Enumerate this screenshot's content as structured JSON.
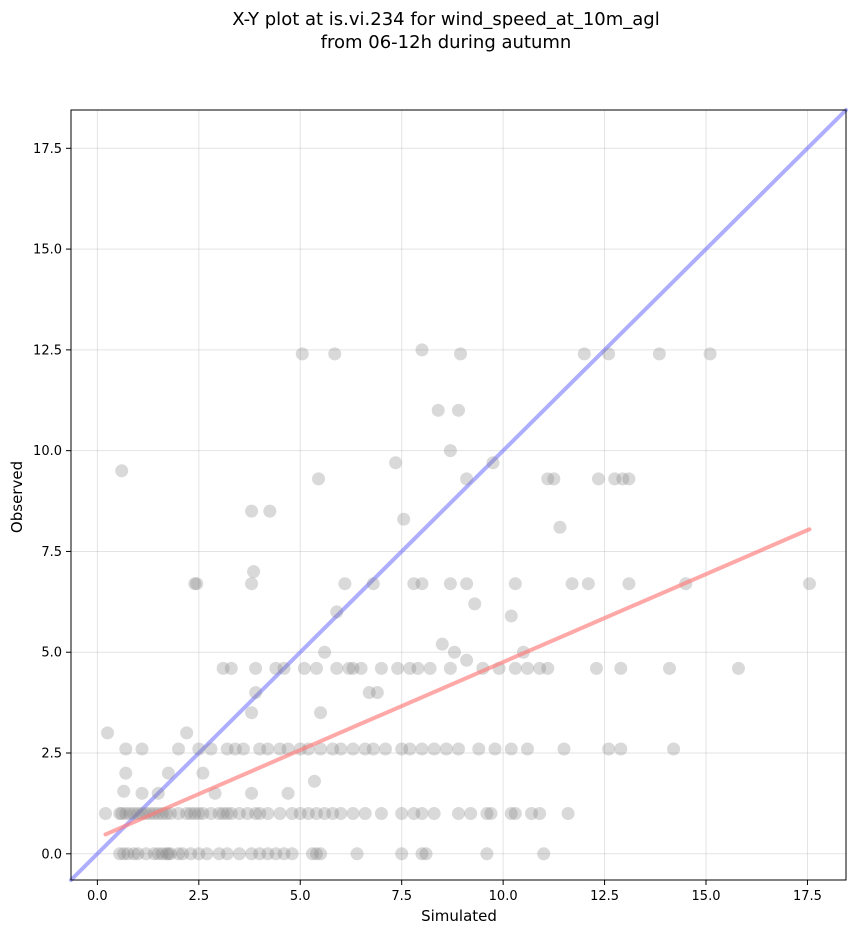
{
  "chart_data": {
    "type": "scatter",
    "title_lines": [
      "X-Y plot at is.vi.234 for wind_speed_at_10m_agl",
      "from 06-12h during autumn"
    ],
    "xlabel": "Simulated",
    "ylabel": "Observed",
    "xlim": [
      -0.65,
      18.45
    ],
    "ylim": [
      -0.65,
      18.45
    ],
    "xticks": [
      0.0,
      2.5,
      5.0,
      7.5,
      10.0,
      12.5,
      15.0,
      17.5
    ],
    "yticks": [
      0.0,
      2.5,
      5.0,
      7.5,
      10.0,
      12.5,
      15.0,
      17.5
    ],
    "xtick_labels": [
      "0.0",
      "2.5",
      "5.0",
      "7.5",
      "10.0",
      "12.5",
      "15.0",
      "17.5"
    ],
    "ytick_labels": [
      "0.0",
      "2.5",
      "5.0",
      "7.5",
      "10.0",
      "12.5",
      "15.0",
      "17.5"
    ],
    "grid": true,
    "point_color": "#808080",
    "identity_line": {
      "color": "#6b6bff",
      "x": [
        -0.65,
        18.45
      ],
      "y": [
        -0.65,
        18.45
      ]
    },
    "fit_line": {
      "color": "#ff7a7a",
      "x": [
        0.2,
        17.55
      ],
      "y": [
        0.48,
        8.05
      ]
    },
    "points": {
      "x": [
        0.2,
        0.25,
        0.55,
        0.6,
        0.65,
        0.7,
        0.8,
        0.9,
        1.0,
        1.1,
        1.2,
        1.3,
        1.4,
        1.5,
        1.6,
        1.7,
        1.8,
        2.0,
        2.2,
        2.3,
        2.4,
        2.5,
        2.6,
        2.8,
        3.0,
        3.1,
        3.2,
        3.3,
        3.5,
        3.7,
        3.9,
        4.0,
        4.2,
        4.5,
        4.8,
        5.0,
        5.2,
        5.4,
        5.6,
        5.8,
        6.0,
        6.3,
        6.6,
        7.0,
        7.5,
        7.8,
        8.0,
        8.3,
        8.9,
        9.2,
        9.6,
        9.7,
        10.2,
        10.3,
        10.7,
        10.9,
        11.6,
        0.55,
        0.65,
        0.75,
        0.9,
        1.0,
        1.2,
        1.4,
        1.5,
        1.6,
        1.7,
        1.75,
        1.8,
        2.0,
        2.1,
        2.3,
        2.5,
        2.7,
        3.0,
        3.2,
        3.5,
        3.8,
        4.0,
        4.2,
        4.4,
        4.6,
        4.8,
        5.3,
        5.4,
        5.5,
        6.4,
        7.5,
        8.0,
        8.1,
        9.6,
        11.0,
        0.7,
        1.1,
        2.0,
        2.5,
        2.8,
        3.2,
        3.4,
        3.6,
        4.0,
        4.2,
        4.5,
        4.7,
        5.0,
        5.2,
        5.5,
        5.8,
        6.0,
        6.3,
        6.6,
        6.8,
        7.1,
        7.5,
        7.7,
        8.0,
        8.3,
        8.6,
        8.9,
        9.4,
        9.8,
        10.2,
        10.6,
        11.5,
        12.6,
        12.9,
        14.2,
        3.1,
        3.3,
        3.9,
        4.4,
        5.1,
        5.4,
        5.9,
        6.2,
        6.5,
        7.0,
        7.4,
        7.7,
        7.9,
        8.2,
        8.7,
        9.5,
        9.9,
        10.3,
        10.6,
        10.9,
        11.1,
        12.3,
        12.9,
        14.1,
        15.8,
        0.7,
        1.1,
        1.5,
        1.75,
        2.2,
        2.6,
        2.9,
        3.8,
        4.7,
        5.35,
        5.5,
        3.8,
        5.6,
        5.9,
        6.3,
        6.7,
        6.9,
        8.5,
        8.8,
        9.1,
        9.3,
        10.2,
        10.5,
        11.4,
        2.4,
        2.45,
        3.8,
        6.1,
        6.8,
        7.8,
        8.0,
        8.7,
        9.1,
        10.3,
        11.7,
        12.1,
        13.1,
        14.5,
        17.55,
        3.85,
        3.8,
        4.25,
        3.9,
        4.6,
        5.45,
        7.35,
        7.55,
        0.6,
        8.4,
        8.9,
        11.1,
        11.25,
        12.35,
        12.75,
        12.95,
        13.1,
        9.1,
        8.7,
        9.75,
        5.05,
        5.85,
        8.0,
        8.95,
        12.0,
        12.6,
        13.85,
        15.1
      ],
      "y": [
        1.0,
        3.0,
        1.0,
        1.0,
        1.55,
        1.0,
        1.0,
        1.0,
        1.0,
        1.0,
        1.0,
        1.0,
        1.0,
        1.0,
        1.0,
        1.0,
        1.0,
        1.0,
        1.0,
        1.0,
        1.0,
        1.0,
        1.0,
        1.0,
        1.0,
        1.0,
        1.0,
        1.0,
        1.0,
        1.0,
        1.0,
        1.0,
        1.0,
        1.0,
        1.0,
        1.0,
        1.0,
        1.0,
        1.0,
        1.0,
        1.0,
        1.0,
        1.0,
        1.0,
        1.0,
        1.0,
        1.0,
        1.0,
        1.0,
        1.0,
        1.0,
        1.0,
        1.0,
        1.0,
        1.0,
        1.0,
        1.0,
        0.0,
        0.0,
        0.0,
        0.0,
        0.0,
        0.0,
        0.0,
        0.0,
        0.0,
        0.0,
        0.0,
        0.0,
        0.0,
        0.0,
        0.0,
        0.0,
        0.0,
        0.0,
        0.0,
        0.0,
        0.0,
        0.0,
        0.0,
        0.0,
        0.0,
        0.0,
        0.0,
        0.0,
        0.0,
        0.0,
        0.0,
        0.0,
        0.0,
        0.0,
        0.0,
        2.6,
        2.6,
        2.6,
        2.6,
        2.6,
        2.6,
        2.6,
        2.6,
        2.6,
        2.6,
        2.6,
        2.6,
        2.6,
        2.6,
        2.6,
        2.6,
        2.6,
        2.6,
        2.6,
        2.6,
        2.6,
        2.6,
        2.6,
        2.6,
        2.6,
        2.6,
        2.6,
        2.6,
        2.6,
        2.6,
        2.6,
        2.6,
        2.6,
        2.6,
        2.6,
        4.6,
        4.6,
        4.6,
        4.6,
        4.6,
        4.6,
        4.6,
        4.6,
        4.6,
        4.6,
        4.6,
        4.6,
        4.6,
        4.6,
        4.6,
        4.6,
        4.6,
        4.6,
        4.6,
        4.6,
        4.6,
        4.6,
        4.6,
        4.6,
        4.6,
        2.0,
        1.5,
        1.5,
        2.0,
        3.0,
        2.0,
        1.5,
        1.5,
        1.5,
        1.8,
        3.5,
        3.5,
        5.0,
        6.0,
        4.6,
        4.0,
        4.0,
        5.2,
        5.0,
        4.8,
        6.2,
        5.9,
        5.0,
        8.1,
        6.7,
        6.7,
        6.7,
        6.7,
        6.7,
        6.7,
        6.7,
        6.7,
        6.7,
        6.7,
        6.7,
        6.7,
        6.7,
        6.7,
        6.7,
        7.0,
        8.5,
        8.5,
        4.0,
        4.6,
        9.3,
        9.7,
        8.3,
        9.5,
        11.0,
        11.0,
        9.3,
        9.3,
        9.3,
        9.3,
        9.3,
        9.3,
        9.3,
        10.0,
        9.7,
        12.4,
        12.4,
        12.5,
        12.4,
        12.4,
        12.4,
        12.4,
        12.4
      ]
    }
  }
}
